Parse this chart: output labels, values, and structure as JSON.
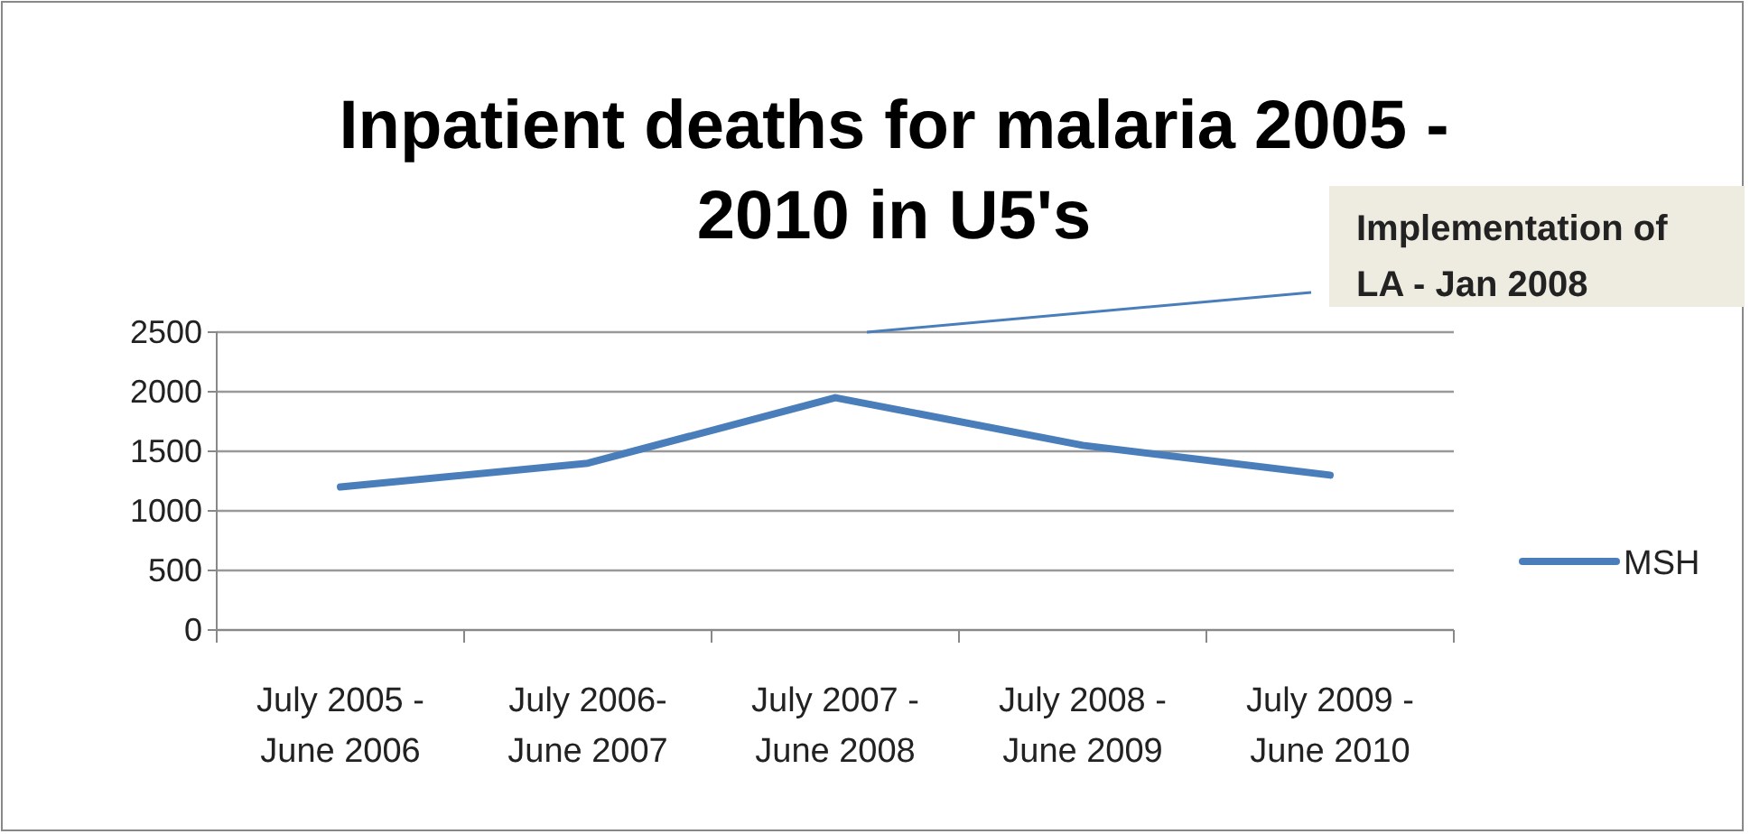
{
  "chart_data": {
    "type": "line",
    "title": "Inpatient deaths for malaria 2005 - 2010 in U5's",
    "categories": [
      "July 2005 - June 2006",
      "July 2006- June 2007",
      "July 2007 - June 2008",
      "July 2008 - June 2009",
      "July 2009 - June 2010"
    ],
    "series": [
      {
        "name": "MSH",
        "color": "#4a7ebb",
        "values": [
          1200,
          1400,
          1950,
          1550,
          1300
        ]
      }
    ],
    "ylim": [
      0,
      2500
    ],
    "yticks": [
      0,
      500,
      1000,
      1500,
      2000,
      2500
    ],
    "grid": "y",
    "legend": "right",
    "marker": "none",
    "annotations": [
      "Implementation of LA - Jan 2008"
    ]
  }
}
